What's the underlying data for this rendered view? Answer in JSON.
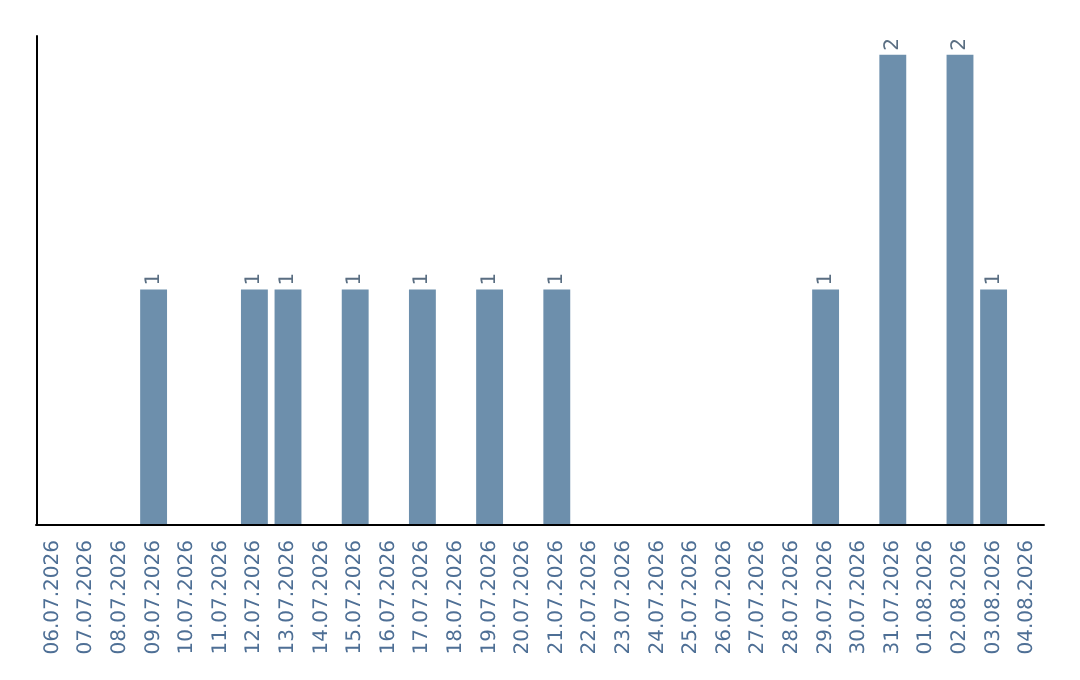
{
  "chart_data": {
    "type": "bar",
    "categories": [
      "06.07.2026",
      "07.07.2026",
      "08.07.2026",
      "09.07.2026",
      "10.07.2026",
      "11.07.2026",
      "12.07.2026",
      "13.07.2026",
      "14.07.2026",
      "15.07.2026",
      "16.07.2026",
      "17.07.2026",
      "18.07.2026",
      "19.07.2026",
      "20.07.2026",
      "21.07.2026",
      "22.07.2026",
      "23.07.2026",
      "24.07.2026",
      "25.07.2026",
      "26.07.2026",
      "27.07.2026",
      "28.07.2026",
      "29.07.2026",
      "30.07.2026",
      "31.07.2026",
      "01.08.2026",
      "02.08.2026",
      "03.08.2026",
      "04.08.2026"
    ],
    "values": [
      0,
      0,
      0,
      1,
      0,
      0,
      1,
      1,
      0,
      1,
      0,
      1,
      0,
      1,
      0,
      1,
      0,
      0,
      0,
      0,
      0,
      0,
      0,
      1,
      0,
      2,
      0,
      2,
      1,
      0
    ],
    "value_labels": [
      null,
      null,
      null,
      "1",
      null,
      null,
      "1",
      "1",
      null,
      "1",
      null,
      "1",
      null,
      "1",
      null,
      "1",
      null,
      null,
      null,
      null,
      null,
      null,
      null,
      "1",
      null,
      "2",
      null,
      "2",
      "1",
      null
    ],
    "color": "#6d8fac",
    "tick_labels": "x"
  }
}
